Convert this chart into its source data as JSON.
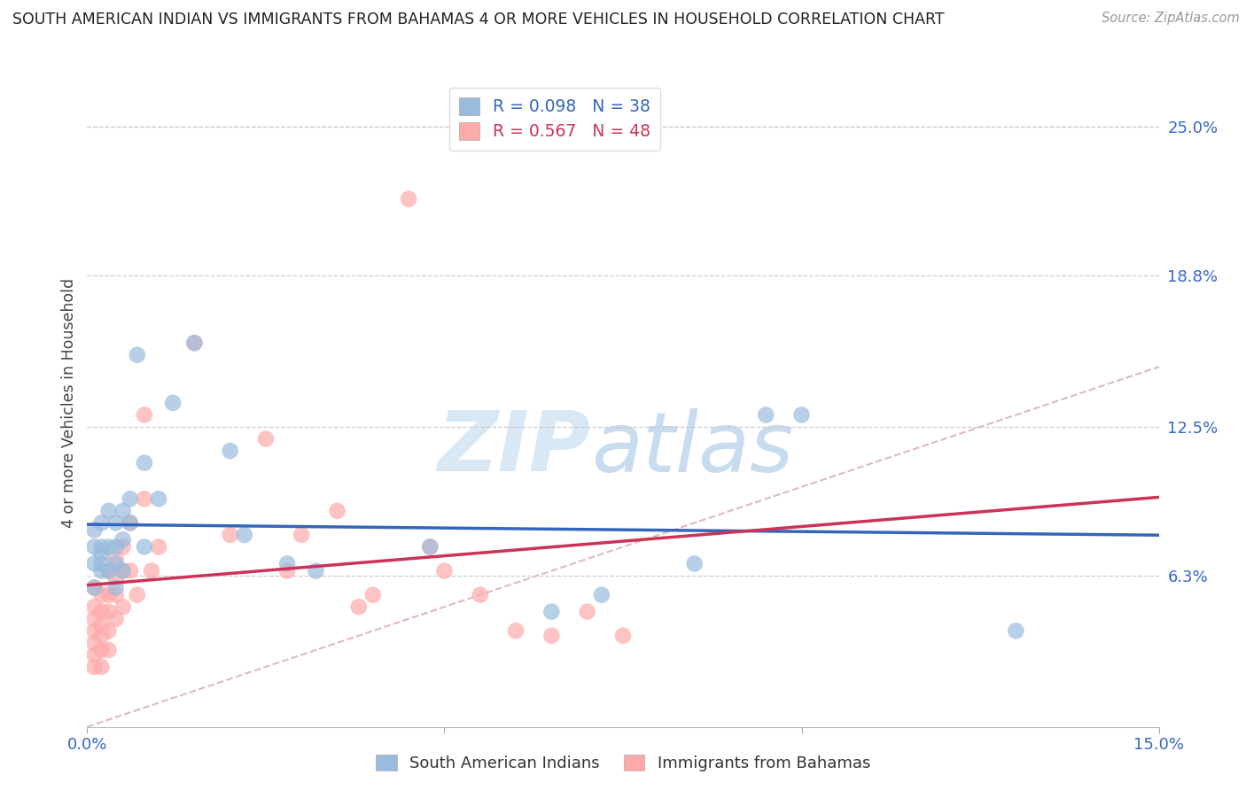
{
  "title": "SOUTH AMERICAN INDIAN VS IMMIGRANTS FROM BAHAMAS 4 OR MORE VEHICLES IN HOUSEHOLD CORRELATION CHART",
  "source": "Source: ZipAtlas.com",
  "ylabel": "4 or more Vehicles in Household",
  "xlim": [
    0.0,
    0.15
  ],
  "ylim": [
    0.0,
    0.27
  ],
  "blue_R": 0.098,
  "blue_N": 38,
  "pink_R": 0.567,
  "pink_N": 48,
  "blue_color": "#99BBDD",
  "pink_color": "#FFAAAA",
  "blue_line_color": "#3366BB",
  "pink_line_color": "#CC3355",
  "diagonal_color": "#DDBBBB",
  "watermark_zip": "ZIP",
  "watermark_atlas": "atlas",
  "ytick_vals": [
    0.063,
    0.125,
    0.188,
    0.25
  ],
  "ytick_labels": [
    "6.3%",
    "12.5%",
    "18.8%",
    "25.0%"
  ],
  "blue_scatter_x": [
    0.001,
    0.001,
    0.001,
    0.001,
    0.002,
    0.002,
    0.002,
    0.002,
    0.002,
    0.003,
    0.003,
    0.003,
    0.004,
    0.004,
    0.004,
    0.004,
    0.005,
    0.005,
    0.005,
    0.006,
    0.006,
    0.007,
    0.008,
    0.008,
    0.01,
    0.012,
    0.015,
    0.02,
    0.022,
    0.028,
    0.032,
    0.048,
    0.065,
    0.072,
    0.085,
    0.095,
    0.1,
    0.13
  ],
  "blue_scatter_y": [
    0.075,
    0.082,
    0.068,
    0.058,
    0.085,
    0.075,
    0.065,
    0.072,
    0.068,
    0.09,
    0.075,
    0.065,
    0.085,
    0.075,
    0.068,
    0.058,
    0.09,
    0.078,
    0.065,
    0.095,
    0.085,
    0.155,
    0.11,
    0.075,
    0.095,
    0.135,
    0.16,
    0.115,
    0.08,
    0.068,
    0.065,
    0.075,
    0.048,
    0.055,
    0.068,
    0.13,
    0.13,
    0.04
  ],
  "pink_scatter_x": [
    0.001,
    0.001,
    0.001,
    0.001,
    0.001,
    0.001,
    0.001,
    0.002,
    0.002,
    0.002,
    0.002,
    0.002,
    0.002,
    0.003,
    0.003,
    0.003,
    0.003,
    0.003,
    0.004,
    0.004,
    0.004,
    0.004,
    0.005,
    0.005,
    0.005,
    0.006,
    0.006,
    0.007,
    0.008,
    0.008,
    0.009,
    0.01,
    0.015,
    0.02,
    0.025,
    0.028,
    0.03,
    0.035,
    0.038,
    0.04,
    0.045,
    0.048,
    0.05,
    0.055,
    0.06,
    0.065,
    0.07,
    0.075
  ],
  "pink_scatter_y": [
    0.058,
    0.05,
    0.045,
    0.04,
    0.035,
    0.03,
    0.025,
    0.055,
    0.048,
    0.042,
    0.038,
    0.032,
    0.025,
    0.065,
    0.055,
    0.048,
    0.04,
    0.032,
    0.07,
    0.062,
    0.055,
    0.045,
    0.075,
    0.065,
    0.05,
    0.085,
    0.065,
    0.055,
    0.13,
    0.095,
    0.065,
    0.075,
    0.16,
    0.08,
    0.12,
    0.065,
    0.08,
    0.09,
    0.05,
    0.055,
    0.22,
    0.075,
    0.065,
    0.055,
    0.04,
    0.038,
    0.048,
    0.038
  ]
}
